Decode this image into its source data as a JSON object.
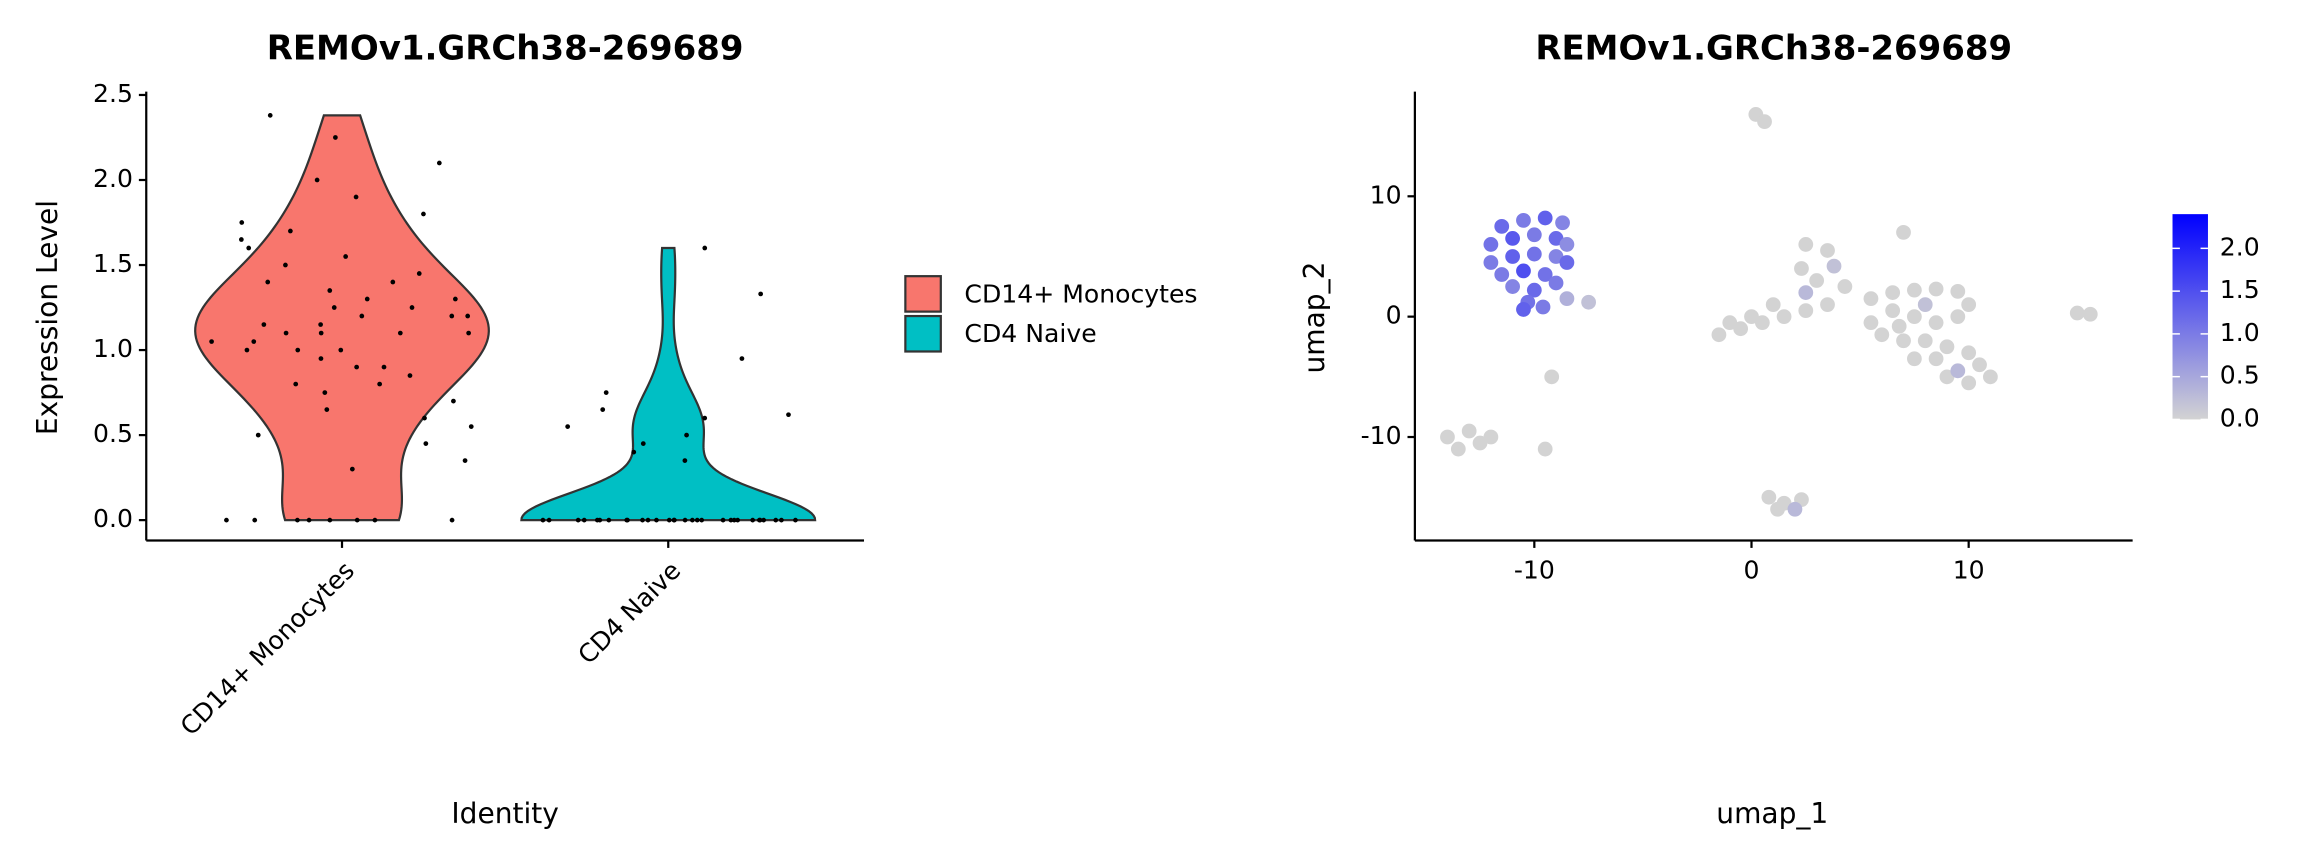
{
  "chart_data": [
    {
      "type": "violin",
      "title": "REMOv1.GRCh38-269689",
      "xlabel": "Identity",
      "ylabel": "Expression Level",
      "categories": [
        "CD14+ Monocytes",
        "CD4 Naive"
      ],
      "ylim": [
        -0.12,
        2.52
      ],
      "yticks": [
        {
          "value": 0,
          "label": "0.0"
        },
        0.5,
        {
          "value": 1,
          "label": "1.0"
        },
        1.5,
        {
          "value": 2,
          "label": "2.0"
        },
        2.5
      ],
      "legend": "right",
      "series": [
        {
          "name": "CD14+ Monocytes",
          "color": "#F8766D",
          "values": [
            0,
            0,
            0,
            0,
            0,
            0,
            0,
            0,
            0.3,
            0.35,
            0.45,
            0.5,
            0.55,
            0.6,
            0.65,
            0.7,
            0.75,
            0.8,
            0.8,
            0.85,
            0.9,
            0.9,
            0.95,
            1.0,
            1.0,
            1.0,
            1.05,
            1.05,
            1.1,
            1.1,
            1.1,
            1.1,
            1.15,
            1.15,
            1.2,
            1.2,
            1.2,
            1.25,
            1.25,
            1.3,
            1.3,
            1.35,
            1.4,
            1.4,
            1.45,
            1.5,
            1.55,
            1.6,
            1.65,
            1.7,
            1.75,
            1.8,
            1.9,
            2.0,
            2.1,
            2.25,
            2.38
          ]
        },
        {
          "name": "CD4 Naive",
          "color": "#00BFC4",
          "values": [
            0,
            0,
            0,
            0,
            0,
            0,
            0,
            0,
            0,
            0,
            0,
            0,
            0,
            0,
            0,
            0,
            0,
            0,
            0,
            0,
            0,
            0,
            0,
            0,
            0,
            0,
            0,
            0,
            0,
            0,
            0.35,
            0.4,
            0.45,
            0.5,
            0.55,
            0.6,
            0.62,
            0.65,
            0.75,
            0.95,
            1.33,
            1.6
          ]
        }
      ]
    },
    {
      "type": "scatter",
      "title": "REMOv1.GRCh38-269689",
      "xlabel": "umap_1",
      "ylabel": "umap_2",
      "xlim": [
        -15.5,
        17.55
      ],
      "ylim": [
        -18.6,
        18.7
      ],
      "xticks": [
        -10,
        0,
        10
      ],
      "yticks": [
        -10,
        0,
        10
      ],
      "x": [
        -11.5,
        -10.5,
        -9.5,
        -8.7,
        -12,
        -11,
        -10,
        -9,
        -8.5,
        -12,
        -11,
        -10,
        -9,
        -8.5,
        -11.5,
        -10.5,
        -9.5,
        -11,
        -10,
        -9,
        -10.3,
        -10.5,
        -9.6,
        -8.5,
        -7.5,
        0.2,
        0.6,
        -1.5,
        -0.5,
        0.5,
        1.5,
        2.5,
        3.5,
        4.3,
        2.5,
        2.3,
        2.5,
        3.5,
        3,
        1,
        0,
        -1,
        3.8,
        5.5,
        6.5,
        7.5,
        8.5,
        9.5,
        10,
        9.5,
        8.5,
        7.5,
        6.5,
        5.5,
        6,
        7,
        8,
        9,
        10,
        10.5,
        11,
        10,
        9,
        8.5,
        7.5,
        9.5,
        8,
        6.8,
        7,
        15,
        15.6,
        -14,
        -13,
        -12.5,
        -13.5,
        -12,
        0.8,
        1.5,
        2.3,
        1.2,
        2,
        -9.2,
        -9.5
      ],
      "y": [
        7.5,
        8,
        8.2,
        7.8,
        6,
        6.5,
        6.8,
        6.5,
        6,
        4.5,
        5,
        5.2,
        5,
        4.5,
        3.5,
        3.8,
        3.5,
        2.5,
        2.2,
        2.8,
        1.2,
        0.6,
        0.8,
        1.5,
        1.2,
        16.8,
        16.2,
        -1.5,
        -1,
        -0.5,
        0,
        0.5,
        1,
        2.5,
        2,
        4,
        6,
        5.5,
        3,
        1,
        0,
        -0.5,
        4.2,
        1.5,
        2,
        2.2,
        2.3,
        2.1,
        1,
        0,
        -0.5,
        0,
        0.5,
        -0.5,
        -1.5,
        -2,
        -2,
        -2.5,
        -3,
        -4,
        -5,
        -5.5,
        -5,
        -3.5,
        -3.5,
        -4.5,
        1,
        -0.8,
        7,
        0.3,
        0.2,
        -10,
        -9.5,
        -10.5,
        -11,
        -10,
        -15,
        -15.5,
        -15.2,
        -16,
        -16,
        -5,
        -11
      ],
      "values": [
        1.2,
        1.0,
        1.3,
        0.9,
        1.1,
        1.4,
        1.0,
        1.2,
        0.8,
        1.0,
        1.3,
        1.1,
        0.9,
        1.2,
        1.0,
        1.5,
        1.1,
        0.9,
        1.2,
        1.0,
        1.1,
        1.3,
        1.0,
        0.4,
        0.2,
        0,
        0,
        0,
        0,
        0,
        0,
        0,
        0,
        0,
        0.3,
        0,
        0,
        0,
        0,
        0,
        0,
        0,
        0.2,
        0,
        0,
        0,
        0,
        0,
        0,
        0,
        0,
        0,
        0,
        0,
        0,
        0,
        0,
        0,
        0,
        0,
        0,
        0,
        0,
        0,
        0,
        0.3,
        0.2,
        0,
        0,
        0,
        0,
        0,
        0,
        0,
        0,
        0,
        0,
        0,
        0,
        0,
        0.3,
        0,
        0
      ],
      "color_scale": {
        "low": "#D3D3D3",
        "high": "#0000FF",
        "lim": [
          0,
          2.4
        ],
        "ticks": [
          {
            "value": 0,
            "label": "0.0"
          },
          0.5,
          {
            "value": 1,
            "label": "1.0"
          },
          1.5,
          {
            "value": 2,
            "label": "2.0"
          }
        ]
      }
    }
  ]
}
